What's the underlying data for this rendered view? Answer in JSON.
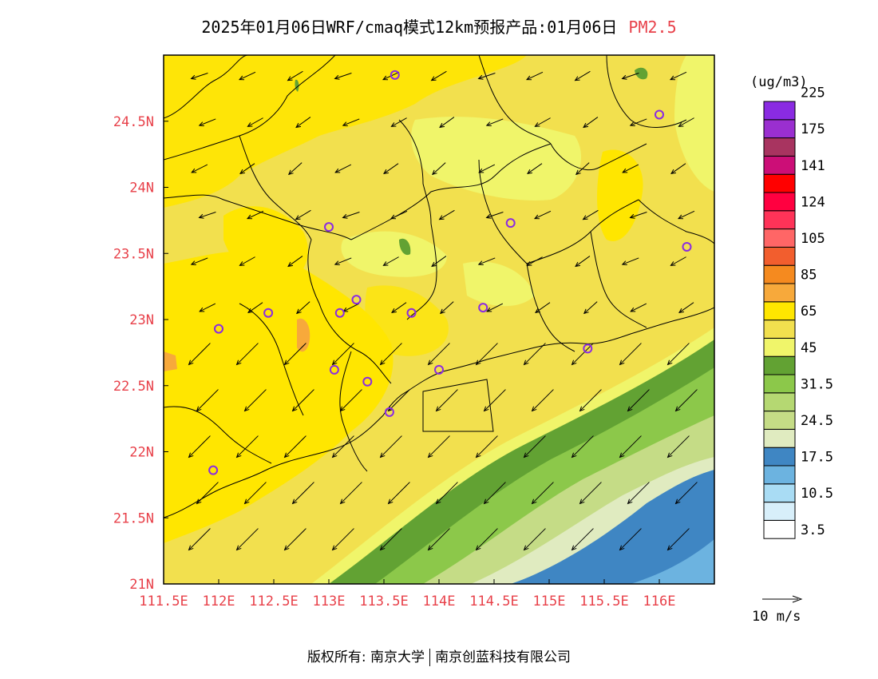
{
  "title": {
    "main": "2025年01月06日WRF/cmaq模式12km预报产品:01月06日",
    "variable": "PM2.5"
  },
  "map": {
    "lon_range": [
      111.5,
      116.5
    ],
    "lat_range": [
      21.0,
      25.0
    ],
    "x_ticks": [
      "111.5E",
      "112E",
      "112.5E",
      "113E",
      "113.5E",
      "114E",
      "114.5E",
      "115E",
      "115.5E",
      "116E"
    ],
    "y_ticks": [
      "21N",
      "21.5N",
      "22N",
      "22.5N",
      "23N",
      "23.5N",
      "24N",
      "24.5N"
    ],
    "tick_color": "#e8414a",
    "station_color": "#8a2be2",
    "stations": [
      {
        "lon": 113.6,
        "lat": 24.85
      },
      {
        "lon": 116.0,
        "lat": 24.55
      },
      {
        "lon": 113.0,
        "lat": 23.7
      },
      {
        "lon": 114.65,
        "lat": 23.73
      },
      {
        "lon": 116.25,
        "lat": 23.55
      },
      {
        "lon": 113.25,
        "lat": 23.15
      },
      {
        "lon": 113.1,
        "lat": 23.05
      },
      {
        "lon": 112.45,
        "lat": 23.05
      },
      {
        "lon": 113.75,
        "lat": 23.05
      },
      {
        "lon": 114.4,
        "lat": 23.09
      },
      {
        "lon": 112.0,
        "lat": 22.93
      },
      {
        "lon": 115.35,
        "lat": 22.78
      },
      {
        "lon": 113.05,
        "lat": 22.62
      },
      {
        "lon": 114.0,
        "lat": 22.62
      },
      {
        "lon": 113.35,
        "lat": 22.53
      },
      {
        "lon": 113.55,
        "lat": 22.3
      },
      {
        "lon": 111.95,
        "lat": 21.86
      }
    ]
  },
  "legend": {
    "unit": "(ug/m3)",
    "colors": [
      "#ffffff",
      "#d8effa",
      "#a9dcf4",
      "#6cb3e0",
      "#3f86c3",
      "#e0ebc0",
      "#c5dc86",
      "#b5d872",
      "#8cc84a",
      "#62a233",
      "#f0f56a",
      "#f2e04e",
      "#ffe600",
      "#f7a93b",
      "#f58a1f",
      "#f25e2e",
      "#ff6666",
      "#ff3358",
      "#ff0040",
      "#ff0000",
      "#cc0e77",
      "#a83460",
      "#9a2fd0",
      "#8a2be2"
    ],
    "labels": [
      "3.5",
      "10.5",
      "17.5",
      "24.5",
      "31.5",
      "45",
      "65",
      "85",
      "105",
      "124",
      "141",
      "175",
      "225"
    ]
  },
  "wind_scale": {
    "label": "10 m/s"
  },
  "footer": {
    "left": "版权所有: 南京大学",
    "right": "南京创蓝科技有限公司"
  }
}
